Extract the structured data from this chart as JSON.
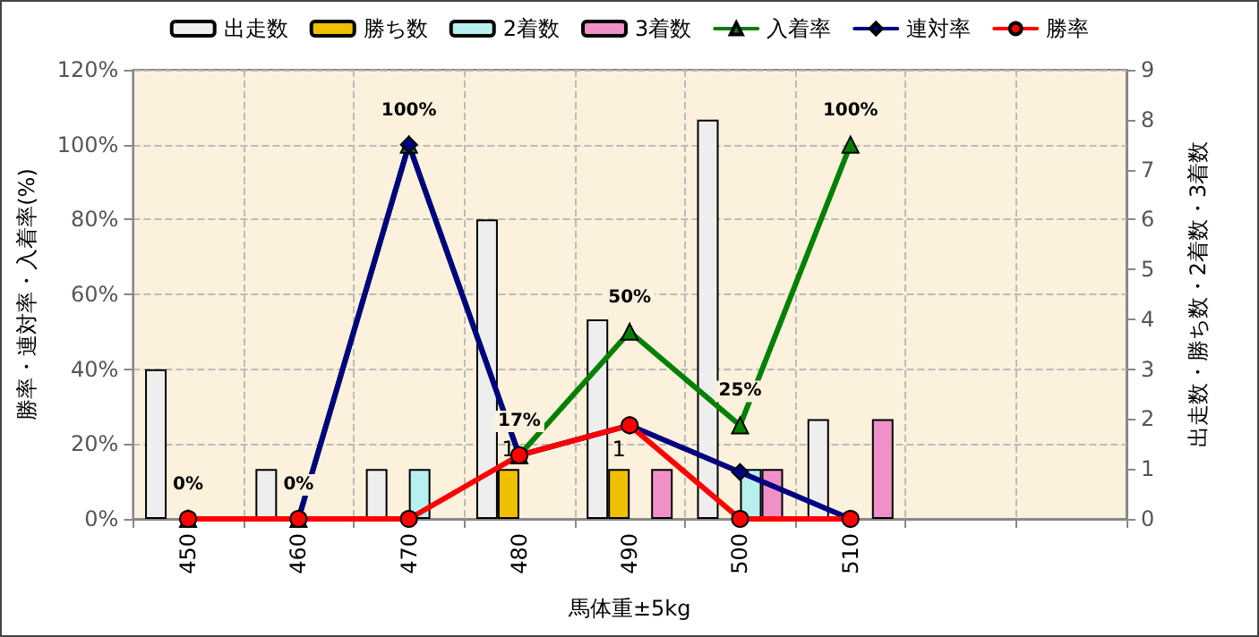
{
  "chart_data": {
    "type": "bar",
    "xlabel": "馬体重±5kg",
    "ylabel": "勝率・連対率・入着率(%)",
    "y2label": "出走数・勝ち数・2着数・3着数",
    "categories": [
      "450",
      "460",
      "470",
      "480",
      "490",
      "500",
      "510",
      null,
      null
    ],
    "series": [
      {
        "name": "出走数",
        "axis": "y2",
        "color": "#eeeeee",
        "values": [
          3,
          1,
          1,
          6,
          4,
          8,
          2,
          null,
          null
        ]
      },
      {
        "name": "勝ち数",
        "axis": "y2",
        "color": "#f0c000",
        "values": [
          null,
          null,
          null,
          1,
          1,
          null,
          null,
          null,
          null
        ],
        "value_labels": [
          null,
          null,
          null,
          "1",
          "1",
          null,
          null,
          null,
          null
        ]
      },
      {
        "name": "2着数",
        "axis": "y2",
        "color": "#b8f0f0",
        "values": [
          null,
          null,
          1,
          null,
          null,
          1,
          null,
          null,
          null
        ]
      },
      {
        "name": "3着数",
        "axis": "y2",
        "color": "#f090c8",
        "values": [
          null,
          null,
          null,
          null,
          1,
          1,
          2,
          null,
          null
        ]
      },
      {
        "name": "入着率",
        "type": "line",
        "color": "#008000",
        "marker": "triangle",
        "values": [
          0,
          0,
          100,
          17,
          50,
          25,
          100,
          null,
          null
        ],
        "value_labels": [
          "0%",
          "0%",
          "100%",
          "17%",
          "50%",
          "25%",
          "100%",
          null,
          null
        ]
      },
      {
        "name": "連対率",
        "type": "line",
        "color": "#000080",
        "marker": "diamond",
        "values": [
          0,
          0,
          100,
          17,
          25,
          12.5,
          0,
          null,
          null
        ]
      },
      {
        "name": "勝率",
        "type": "line",
        "color": "#ff0000",
        "marker": "circle",
        "values": [
          0,
          0,
          0,
          17,
          25,
          0,
          0,
          null,
          null
        ]
      }
    ],
    "ylim": [
      0,
      120
    ],
    "yticks": [
      {
        "value": 0,
        "label": "0%"
      },
      {
        "value": 20,
        "label": "20%"
      },
      {
        "value": 40,
        "label": "40%"
      },
      {
        "value": 60,
        "label": "60%"
      },
      {
        "value": 80,
        "label": "80%"
      },
      {
        "value": 100,
        "label": "100%"
      },
      {
        "value": 120,
        "label": "120%"
      }
    ],
    "y2lim": [
      0,
      9
    ],
    "y2ticks": [
      0,
      1,
      2,
      3,
      4,
      5,
      6,
      7,
      8,
      9
    ],
    "grid": true,
    "legend": "top",
    "line_style": "solid"
  }
}
